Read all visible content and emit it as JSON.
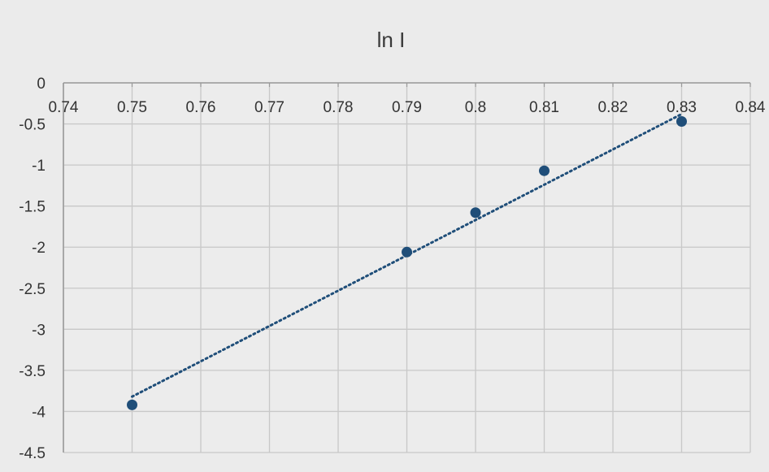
{
  "chart_data": {
    "type": "scatter",
    "title": "ln I",
    "xlabel": "",
    "ylabel": "",
    "xlim": [
      0.74,
      0.84
    ],
    "ylim": [
      -4.5,
      0
    ],
    "x_ticks": [
      "0.74",
      "0.75",
      "0.76",
      "0.77",
      "0.78",
      "0.79",
      "0.8",
      "0.81",
      "0.82",
      "0.83",
      "0.84"
    ],
    "y_ticks": [
      "0",
      "-0.5",
      "-1",
      "-1.5",
      "-2",
      "-2.5",
      "-3",
      "-3.5",
      "-4",
      "-4.5"
    ],
    "x_tick_values": [
      0.74,
      0.75,
      0.76,
      0.77,
      0.78,
      0.79,
      0.8,
      0.81,
      0.82,
      0.83,
      0.84
    ],
    "y_tick_values": [
      0,
      -0.5,
      -1,
      -1.5,
      -2,
      -2.5,
      -3,
      -3.5,
      -4,
      -4.5
    ],
    "grid": true,
    "legend": "none",
    "series": [
      {
        "x": [
          0.75,
          0.79,
          0.8,
          0.81,
          0.83
        ],
        "y": [
          -3.92,
          -2.06,
          -1.58,
          -1.07,
          -0.47
        ],
        "color": "#1f4e79"
      }
    ],
    "trendline": {
      "type": "linear",
      "style": "dotted",
      "color": "#1f4e79",
      "x_start": 0.75,
      "y_start": -3.82,
      "x_end": 0.83,
      "y_end": -0.38
    },
    "colors": {
      "grid": "#c8c8c8",
      "axis": "#9a9a9a",
      "marker": "#1f4e79",
      "text": "#333333"
    }
  }
}
